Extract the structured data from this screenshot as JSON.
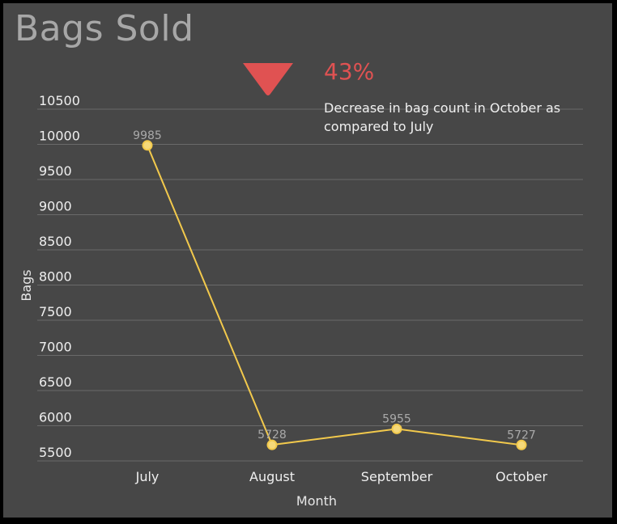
{
  "header": {
    "title": "Bags Sold"
  },
  "kpi": {
    "icon": "down-triangle-icon",
    "value": "43%",
    "description": "Decrease in bag count in October as compared to July",
    "color": "#e05252"
  },
  "colors": {
    "background": "#474747",
    "line": "#f2c94c",
    "grid": "#6a6a6a"
  },
  "chart_data": {
    "type": "line",
    "title": "Bags Sold",
    "xlabel": "Month",
    "ylabel": "Bags",
    "categories": [
      "July",
      "August",
      "September",
      "October"
    ],
    "values": [
      9985,
      5728,
      5955,
      5727
    ],
    "data_labels": [
      "9985",
      "5728",
      "5955",
      "5727"
    ],
    "ylim": [
      5500,
      10500
    ],
    "yticks": [
      5500,
      6000,
      6500,
      7000,
      7500,
      8000,
      8500,
      9000,
      9500,
      10000,
      10500
    ],
    "grid": true
  }
}
